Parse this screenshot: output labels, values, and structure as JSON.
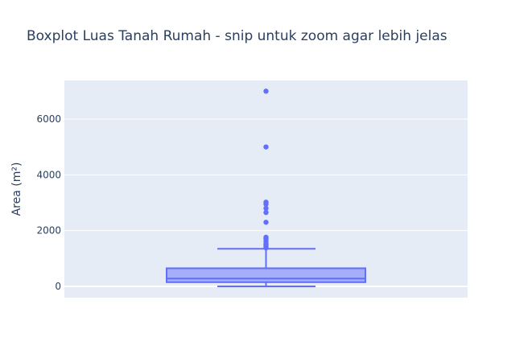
{
  "chart_data": {
    "type": "box",
    "title": "Boxplot Luas Tanah Rumah - snip untuk zoom agar lebih jelas",
    "xlabel": "",
    "ylabel": "Area (m²)",
    "ylim": [
      -400,
      7400
    ],
    "yticks": [
      0,
      2000,
      4000,
      6000
    ],
    "ytick_labels": [
      "0",
      "2000",
      "4000",
      "6000"
    ],
    "grid": true,
    "colors": {
      "plot_bg": "#e5ecf6",
      "box_fill": "#a5aef9",
      "box_line": "#636efa",
      "grid": "#ffffff",
      "text": "#2a3f5f"
    },
    "box": {
      "whisker_low": 0,
      "q1": 150,
      "median": 280,
      "q3": 650,
      "whisker_high": 1350
    },
    "outliers": [
      1380,
      1430,
      1480,
      1530,
      1620,
      1700,
      1760,
      2300,
      2650,
      2800,
      2950,
      3020,
      5000,
      7000
    ]
  }
}
